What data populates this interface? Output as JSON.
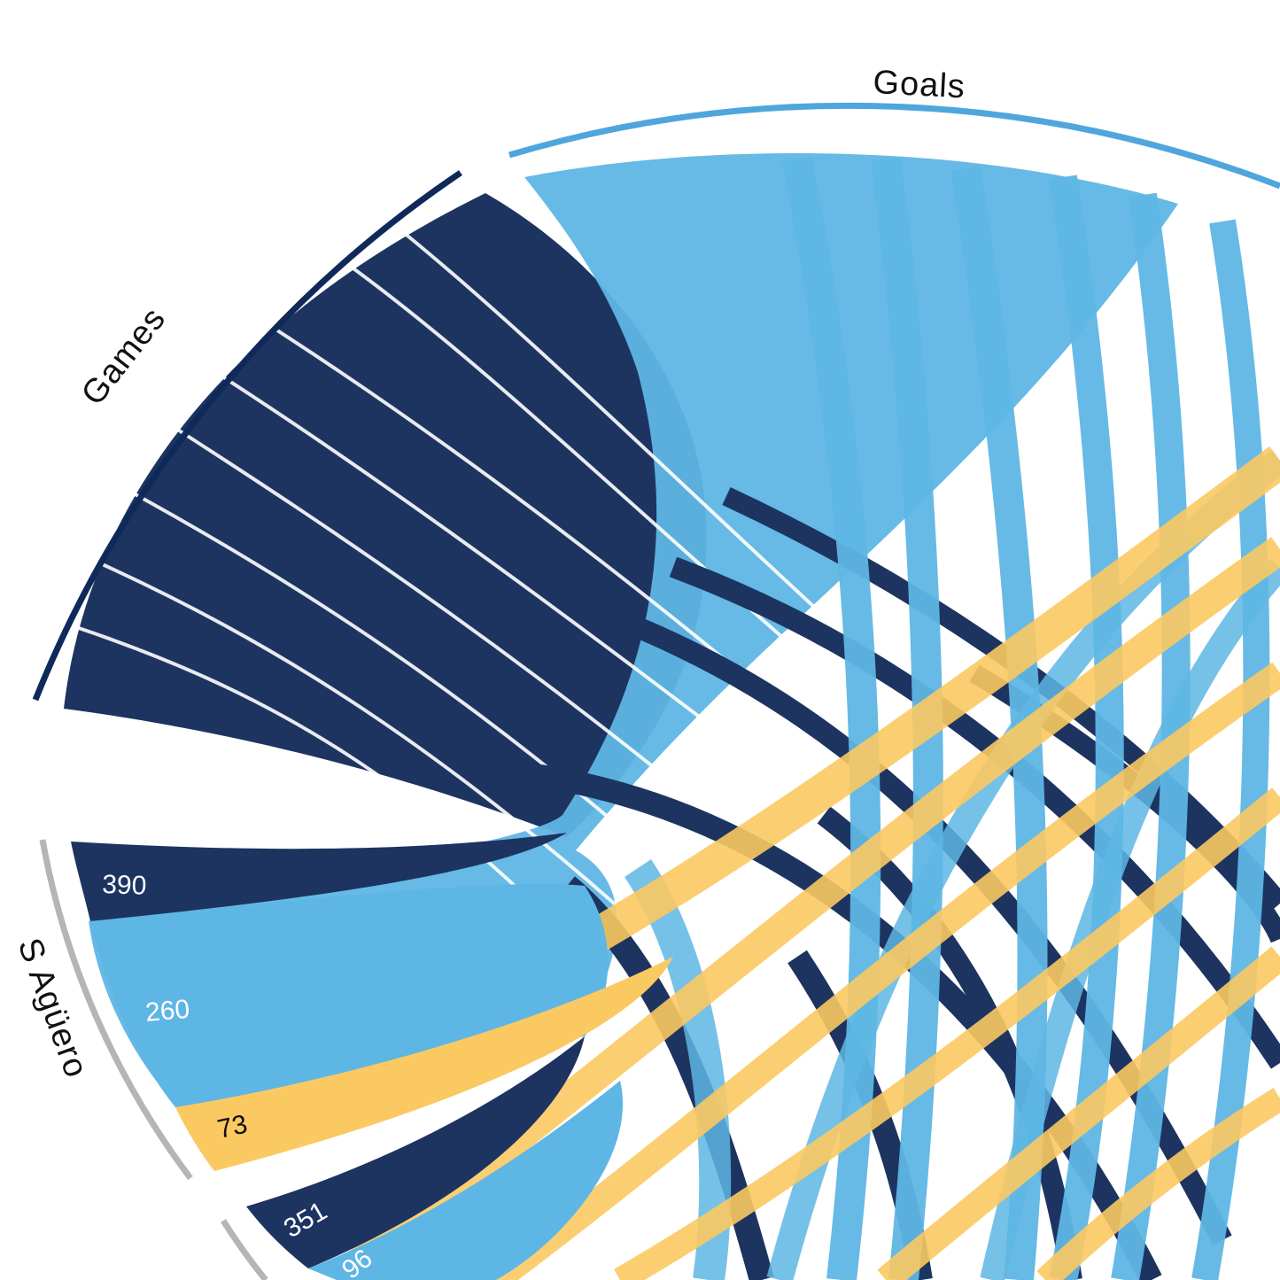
{
  "chart_data": {
    "type": "chord",
    "title": "",
    "categories": [
      "Games",
      "Goals"
    ],
    "colors": {
      "Games": "#1d3461",
      "Goals": "#5eb6e4",
      "Assists": "#fbc962",
      "player_arc": "#b5b5b5",
      "games_arc": "#0f2a5a"
    },
    "players": [
      {
        "name": "S Agüero",
        "games": 390,
        "goals": 260,
        "assists": 73,
        "labels": {
          "games": "390",
          "goals": "260",
          "assists": "73"
        }
      },
      {
        "name": "",
        "games": 351,
        "goals": 96,
        "assists": null,
        "labels": {
          "games": "351",
          "goals": "96",
          "assists": ""
        }
      }
    ],
    "arc_labels": {
      "games": "Games",
      "goals": "Goals",
      "player_1": "S Agüero"
    }
  }
}
